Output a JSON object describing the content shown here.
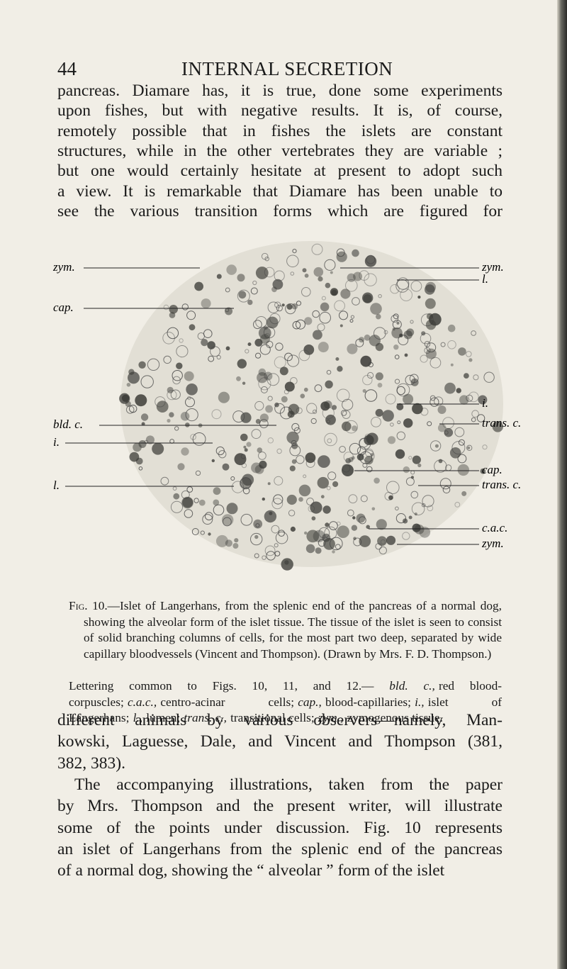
{
  "header": {
    "page_number": "44",
    "running_title": "INTERNAL SECRETION"
  },
  "paragraph_1": {
    "lines": [
      "pancreas. Diamare has, it is true, done some experiments",
      "upon fishes, but with negative results. It is, of course,",
      "remotely possible that in fishes the islets are constant",
      "structures, while in the other vertebrates they are variable ;",
      "but one would certainly hesitate at present to adopt such",
      "a view. It is remarkable that Diamare has been unable to",
      "see the various transition forms which are figured for"
    ]
  },
  "figure": {
    "labels_left": [
      "zym.",
      "cap.",
      "bld. c.",
      "i.",
      "l."
    ],
    "labels_right": [
      "zym.",
      "l.",
      "i.",
      "trans. c.",
      "cap.",
      "trans. c.",
      "c.a.c.",
      "zym."
    ]
  },
  "caption": {
    "figure_number": "Fig. 10.",
    "text": "—Islet of Langerhans, from the splenic end of the pancreas of a normal dog, showing the alveolar form of the islet tissue. The tissue of the islet is seen to consist of solid branching columns of cells, for the most part two deep, separated by wide capillary bloodvessels (Vincent and Thompson). (Drawn by Mrs. F. D. Thompson.)"
  },
  "lettering": {
    "intro": "Lettering common to Figs. 10, 11, and 12.—",
    "items": [
      {
        "abbr": "bld. c.,",
        "meaning": "red blood-corpuscles;"
      },
      {
        "abbr": "c.a.c.,",
        "meaning": "centro-acinar cells;"
      },
      {
        "abbr": "cap.,",
        "meaning": "blood-capillaries;"
      },
      {
        "abbr": "i.,",
        "meaning": "islet of Langerhans;"
      },
      {
        "abbr": "l.,",
        "meaning": "lumen;"
      },
      {
        "abbr": "trans. c.,",
        "meaning": "transitional cells;"
      },
      {
        "abbr": "zym.,",
        "meaning": "zymogenous tissue."
      }
    ]
  },
  "paragraph_2": {
    "lines": [
      "different animals by various observers—namely, Man-",
      "kowski, Laguesse, Dale, and Vincent and Thompson (381,",
      "382, 383).",
      "The accompanying illustrations, taken from the paper",
      "by Mrs. Thompson and the present writer, will illustrate",
      "some of the points under discussion. Fig. 10 represents",
      "an islet of Langerhans from the splenic end of the pancreas",
      "of a normal dog, showing the “ alveolar ” form of the islet"
    ]
  }
}
